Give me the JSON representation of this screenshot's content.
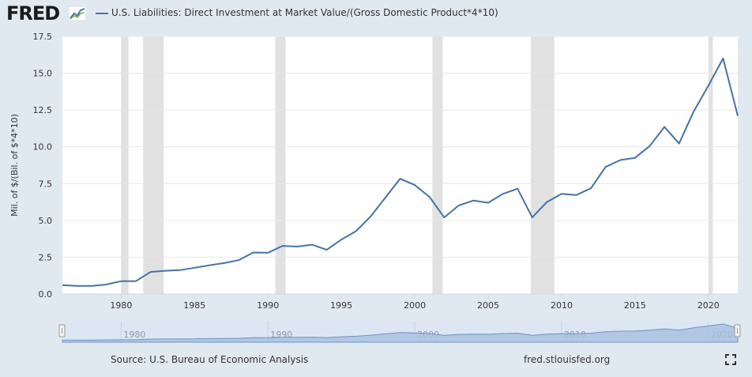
{
  "header": {
    "logo": "FRED",
    "series_title": "U.S. Liabilities: Direct Investment at Market Value/(Gross Domestic Product*4*10)"
  },
  "footer": {
    "source": "Source: U.S. Bureau of Economic Analysis",
    "url": "fred.stlouisfed.org"
  },
  "colors": {
    "line": "#4572a7",
    "recession": "#e1e1e1",
    "page_bg": "#e1e9f0",
    "plot_bg": "#ffffff",
    "navigator_fill": "#a8bfe0"
  },
  "icons": [
    "fred-logo-chart-icon",
    "fullscreen-icon"
  ],
  "chart_data": {
    "type": "line",
    "xlabel": "",
    "ylabel": "Mil. of $/(Bil. of $*4*10)",
    "xlim": [
      1976,
      2022
    ],
    "ylim": [
      0,
      17.5
    ],
    "y_ticks": [
      "0.0",
      "2.5",
      "5.0",
      "7.5",
      "10.0",
      "12.5",
      "15.0",
      "17.5"
    ],
    "x_ticks": [
      "1980",
      "1985",
      "1990",
      "1995",
      "2000",
      "2005",
      "2010",
      "2015",
      "2020"
    ],
    "grid": "horizontal",
    "recessions": [
      [
        1980.0,
        1980.5
      ],
      [
        1981.5,
        1982.9
      ],
      [
        1990.5,
        1991.2
      ],
      [
        2001.2,
        2001.9
      ],
      [
        2007.9,
        2009.5
      ],
      [
        2020.0,
        2020.3
      ]
    ],
    "series": [
      {
        "x": [
          1976,
          1977,
          1978,
          1979,
          1980,
          1981,
          1982,
          1983,
          1984,
          1985,
          1986,
          1987,
          1988,
          1989,
          1990,
          1991,
          1992,
          1993,
          1994,
          1995,
          1996,
          1997,
          1998,
          1999,
          2000,
          2001,
          2002,
          2003,
          2004,
          2005,
          2006,
          2007,
          2008,
          2009,
          2010,
          2011,
          2012,
          2013,
          2014,
          2015,
          2016,
          2017,
          2018,
          2019,
          2020,
          2021,
          2022
        ],
        "values": [
          0.6,
          0.55,
          0.55,
          0.65,
          0.87,
          0.87,
          1.5,
          1.58,
          1.62,
          1.78,
          1.95,
          2.1,
          2.3,
          2.82,
          2.8,
          3.27,
          3.22,
          3.35,
          3.0,
          3.7,
          4.27,
          5.27,
          6.55,
          7.83,
          7.4,
          6.6,
          5.2,
          6.02,
          6.35,
          6.2,
          6.8,
          7.15,
          5.2,
          6.25,
          6.8,
          6.72,
          7.18,
          8.63,
          9.1,
          9.25,
          10.05,
          11.35,
          10.22,
          12.4,
          14.15,
          16.0,
          12.1
        ]
      }
    ],
    "navigator": {
      "x_ticks": [
        "1980",
        "1990",
        "2000",
        "2010",
        "2020"
      ]
    }
  }
}
